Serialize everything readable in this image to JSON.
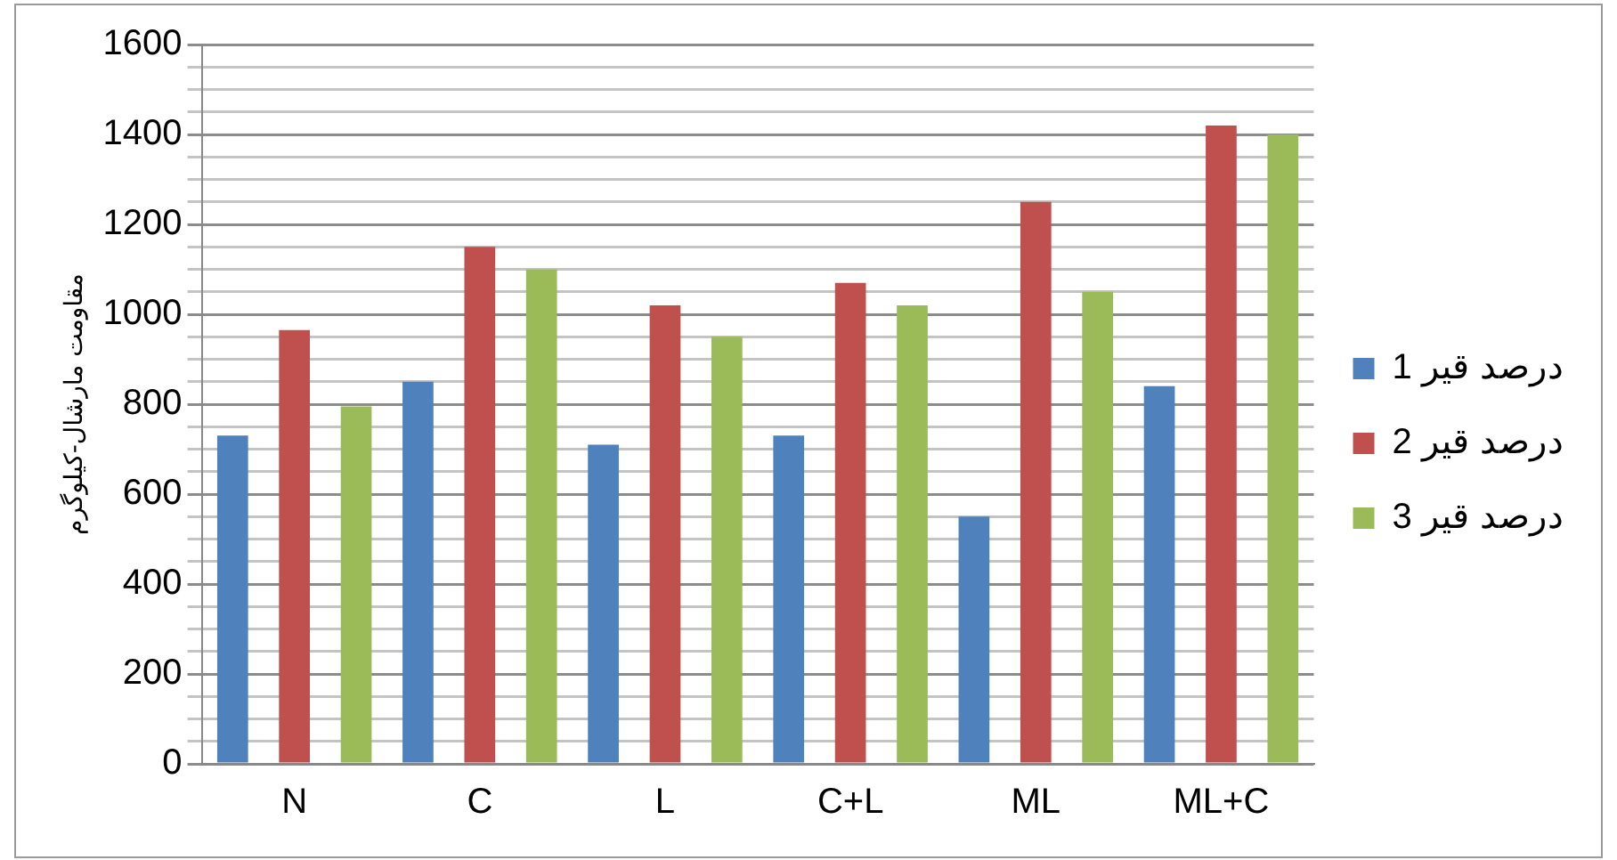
{
  "chart_data": {
    "type": "bar",
    "ylabel": "مقاومت مارشال-کیلوگرم",
    "categories": [
      "N",
      "C",
      "L",
      "C+L",
      "ML",
      "ML+C"
    ],
    "series": [
      {
        "name": "درصد قیر 1",
        "color": "#4f81bd",
        "values": [
          730,
          850,
          710,
          730,
          550,
          840
        ]
      },
      {
        "name": "درصد قیر 2",
        "color": "#c0504d",
        "values": [
          965,
          1150,
          1020,
          1070,
          1250,
          1420
        ]
      },
      {
        "name": "درصد قیر 3",
        "color": "#9bbb59",
        "values": [
          795,
          1100,
          950,
          1020,
          1050,
          1400
        ]
      }
    ],
    "ylim": [
      0,
      1600
    ],
    "yticks": [
      0,
      {
        "value": 50,
        "label": null
      },
      {
        "value": 100,
        "label": null
      },
      {
        "value": 150,
        "label": null
      },
      200,
      {
        "value": 250,
        "label": null
      },
      {
        "value": 300,
        "label": null
      },
      {
        "value": 350,
        "label": null
      },
      400,
      {
        "value": 450,
        "label": null
      },
      {
        "value": 500,
        "label": null
      },
      {
        "value": 550,
        "label": null
      },
      600,
      {
        "value": 650,
        "label": null
      },
      {
        "value": 700,
        "label": null
      },
      {
        "value": 750,
        "label": null
      },
      800,
      {
        "value": 850,
        "label": null
      },
      {
        "value": 900,
        "label": null
      },
      {
        "value": 950,
        "label": null
      },
      1000,
      {
        "value": 1050,
        "label": null
      },
      {
        "value": 1100,
        "label": null
      },
      {
        "value": 1150,
        "label": null
      },
      1200,
      {
        "value": 1250,
        "label": null
      },
      {
        "value": 1300,
        "label": null
      },
      {
        "value": 1350,
        "label": null
      },
      1400,
      {
        "value": 1450,
        "label": null
      },
      {
        "value": 1500,
        "label": null
      },
      {
        "value": 1550,
        "label": null
      },
      1600
    ],
    "grid": "y",
    "legend": "right"
  }
}
